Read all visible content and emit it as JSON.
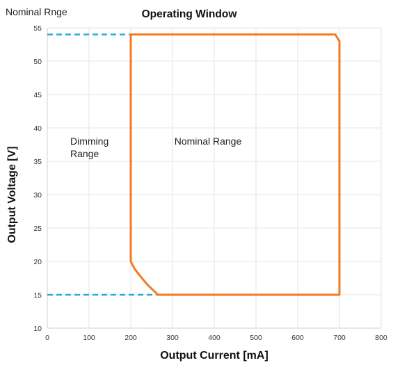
{
  "corner_label": "Nominal Rnge",
  "chart_data": {
    "type": "line",
    "title": "Operating Window",
    "xlabel": "Output Current [mA]",
    "ylabel": "Output Voltage [V]",
    "xlim": [
      0,
      800
    ],
    "ylim": [
      10,
      55
    ],
    "x_ticks": [
      0,
      100,
      200,
      300,
      400,
      500,
      600,
      700,
      800
    ],
    "y_ticks": [
      10,
      15,
      20,
      25,
      30,
      35,
      40,
      45,
      50,
      55
    ],
    "grid": true,
    "colors": {
      "window": "#f47a20",
      "reference": "#29abe2",
      "grid": "#e6e6e6"
    },
    "series": [
      {
        "role": "operating-window-boundary",
        "x": [
          200,
          200,
          215,
          235,
          265,
          700,
          700,
          690,
          200
        ],
        "y": [
          20,
          54,
          54,
          54,
          54,
          54,
          53,
          54,
          54
        ]
      }
    ],
    "window_outline": {
      "x": [
        200,
        690,
        700,
        700,
        265,
        240,
        220,
        208,
        200,
        200
      ],
      "y": [
        54,
        54,
        53,
        15,
        15,
        16.5,
        18,
        19,
        20,
        54
      ]
    },
    "reference_lines": [
      {
        "x": [
          0,
          200
        ],
        "y": [
          54,
          54
        ]
      },
      {
        "x": [
          0,
          265
        ],
        "y": [
          15,
          15
        ]
      }
    ],
    "annotations": [
      {
        "lines": [
          "Dimming",
          "Range"
        ],
        "x": 55,
        "y": 37.5
      },
      {
        "lines": [
          "Nominal Range"
        ],
        "x": 385,
        "y": 37.5
      }
    ]
  }
}
